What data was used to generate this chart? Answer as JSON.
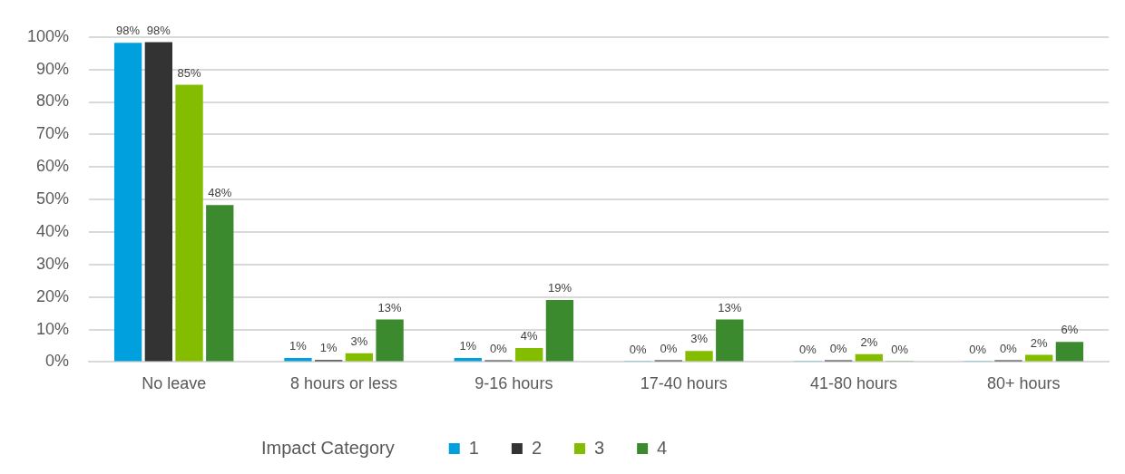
{
  "chart_data": {
    "type": "bar",
    "categories": [
      "No leave",
      "8 hours or less",
      "9-16 hours",
      "17-40 hours",
      "41-80 hours",
      "80+ hours"
    ],
    "legend_title": "Impact Category",
    "legend": "bottom",
    "grid": "y",
    "ylim": [
      0,
      100
    ],
    "yticks": [
      {
        "value": 0,
        "label": "0%"
      },
      {
        "value": 10,
        "label": "10%"
      },
      {
        "value": 20,
        "label": "20%"
      },
      {
        "value": 30,
        "label": "30%"
      },
      {
        "value": 40,
        "label": "40%"
      },
      {
        "value": 50,
        "label": "50%"
      },
      {
        "value": 60,
        "label": "60%"
      },
      {
        "value": 70,
        "label": "70%"
      },
      {
        "value": 80,
        "label": "80%"
      },
      {
        "value": 90,
        "label": "90%"
      },
      {
        "value": 100,
        "label": "100%"
      }
    ],
    "series": [
      {
        "name": "1",
        "color": "#00a0df",
        "values": [
          98.2,
          1.2,
          1.2,
          0.2,
          0.2,
          0.2
        ],
        "value_labels": [
          "98%",
          "1%",
          "1%",
          "0%",
          "0%",
          "0%"
        ]
      },
      {
        "name": "2",
        "color": "#333333",
        "values": [
          98.4,
          0.6,
          0.5,
          0.5,
          0.5,
          0.5
        ],
        "value_labels": [
          "98%",
          "1%",
          "0%",
          "0%",
          "0%",
          "0%"
        ]
      },
      {
        "name": "3",
        "color": "#84bd00",
        "values": [
          85.3,
          2.7,
          4.3,
          3.4,
          2.4,
          2.2
        ],
        "value_labels": [
          "85%",
          "3%",
          "4%",
          "3%",
          "2%",
          "2%"
        ]
      },
      {
        "name": "4",
        "color": "#3c8a2e",
        "values": [
          48.3,
          13.1,
          19.1,
          13.1,
          0.2,
          6.2
        ],
        "value_labels": [
          "48%",
          "13%",
          "19%",
          "13%",
          "0%",
          "6%"
        ]
      }
    ]
  }
}
